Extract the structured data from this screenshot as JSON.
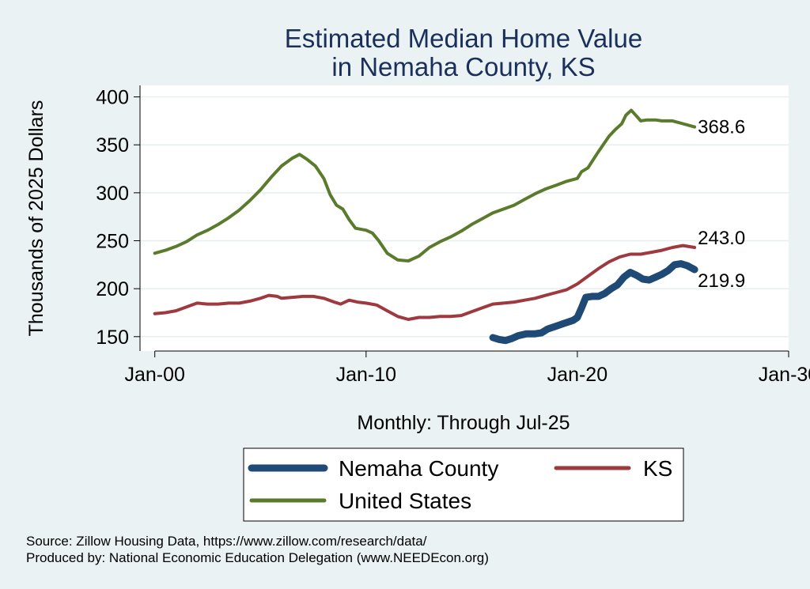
{
  "chart_data": {
    "type": "line",
    "title": [
      "Estimated Median Home Value",
      "in Nemaha County, KS"
    ],
    "ylabel": "Thousands of 2025 Dollars",
    "xlabel": "Monthly: Through Jul-25",
    "ylim": [
      135,
      412
    ],
    "xlim": [
      1999.3,
      2030.0
    ],
    "yticks": [
      150,
      200,
      250,
      300,
      350,
      400
    ],
    "xticks": [
      {
        "value": 2000,
        "label": "Jan-00"
      },
      {
        "value": 2010,
        "label": "Jan-10"
      },
      {
        "value": 2020,
        "label": "Jan-20"
      },
      {
        "value": 2030,
        "label": "Jan-30"
      }
    ],
    "series": [
      {
        "name": "United States",
        "color": "#5a7b2b",
        "width": 4,
        "end_label": "368.6",
        "points": [
          [
            2000.0,
            237
          ],
          [
            2000.5,
            240
          ],
          [
            2001.0,
            244
          ],
          [
            2001.5,
            249
          ],
          [
            2002.0,
            256
          ],
          [
            2002.5,
            261
          ],
          [
            2003.0,
            267
          ],
          [
            2003.5,
            274
          ],
          [
            2004.0,
            282
          ],
          [
            2004.5,
            292
          ],
          [
            2005.0,
            303
          ],
          [
            2005.5,
            316
          ],
          [
            2006.0,
            328
          ],
          [
            2006.5,
            336
          ],
          [
            2006.85,
            340
          ],
          [
            2007.2,
            335
          ],
          [
            2007.6,
            328
          ],
          [
            2008.0,
            315
          ],
          [
            2008.3,
            298
          ],
          [
            2008.6,
            287
          ],
          [
            2008.9,
            283
          ],
          [
            2009.2,
            272
          ],
          [
            2009.5,
            263
          ],
          [
            2010.0,
            261
          ],
          [
            2010.3,
            258
          ],
          [
            2010.6,
            250
          ],
          [
            2011.0,
            237
          ],
          [
            2011.5,
            230
          ],
          [
            2012.0,
            229
          ],
          [
            2012.5,
            234
          ],
          [
            2013.0,
            243
          ],
          [
            2013.5,
            249
          ],
          [
            2014.0,
            254
          ],
          [
            2014.5,
            260
          ],
          [
            2015.0,
            267
          ],
          [
            2015.5,
            273
          ],
          [
            2016.0,
            279
          ],
          [
            2016.5,
            283
          ],
          [
            2017.0,
            287
          ],
          [
            2017.5,
            293
          ],
          [
            2018.0,
            299
          ],
          [
            2018.5,
            304
          ],
          [
            2019.0,
            308
          ],
          [
            2019.5,
            312
          ],
          [
            2020.0,
            315
          ],
          [
            2020.2,
            322
          ],
          [
            2020.5,
            326
          ],
          [
            2021.0,
            343
          ],
          [
            2021.5,
            359
          ],
          [
            2021.8,
            366
          ],
          [
            2022.1,
            372
          ],
          [
            2022.3,
            381
          ],
          [
            2022.55,
            386
          ],
          [
            2022.8,
            380
          ],
          [
            2023.0,
            375
          ],
          [
            2023.3,
            376
          ],
          [
            2023.7,
            376
          ],
          [
            2024.0,
            375
          ],
          [
            2024.5,
            375
          ],
          [
            2025.0,
            372
          ],
          [
            2025.55,
            368.6
          ]
        ]
      },
      {
        "name": "KS",
        "color": "#9e3a3f",
        "width": 4,
        "end_label": "243.0",
        "points": [
          [
            2000.0,
            174
          ],
          [
            2000.5,
            175
          ],
          [
            2001.0,
            177
          ],
          [
            2001.5,
            181
          ],
          [
            2002.0,
            185
          ],
          [
            2002.5,
            184
          ],
          [
            2003.0,
            184
          ],
          [
            2003.5,
            185
          ],
          [
            2004.0,
            185
          ],
          [
            2004.5,
            187
          ],
          [
            2005.0,
            190
          ],
          [
            2005.4,
            193
          ],
          [
            2005.8,
            192
          ],
          [
            2006.0,
            190
          ],
          [
            2006.5,
            191
          ],
          [
            2007.0,
            192
          ],
          [
            2007.5,
            192
          ],
          [
            2008.0,
            190
          ],
          [
            2008.5,
            186
          ],
          [
            2008.8,
            184
          ],
          [
            2009.2,
            188
          ],
          [
            2009.6,
            186
          ],
          [
            2010.0,
            185
          ],
          [
            2010.5,
            183
          ],
          [
            2011.0,
            177
          ],
          [
            2011.5,
            171
          ],
          [
            2012.0,
            168
          ],
          [
            2012.5,
            170
          ],
          [
            2013.0,
            170
          ],
          [
            2013.5,
            171
          ],
          [
            2014.0,
            171
          ],
          [
            2014.5,
            172
          ],
          [
            2015.0,
            176
          ],
          [
            2015.5,
            180
          ],
          [
            2016.0,
            184
          ],
          [
            2016.5,
            185
          ],
          [
            2017.0,
            186
          ],
          [
            2017.5,
            188
          ],
          [
            2018.0,
            190
          ],
          [
            2018.5,
            193
          ],
          [
            2019.0,
            196
          ],
          [
            2019.5,
            199
          ],
          [
            2020.0,
            205
          ],
          [
            2020.5,
            213
          ],
          [
            2021.0,
            221
          ],
          [
            2021.5,
            228
          ],
          [
            2022.0,
            233
          ],
          [
            2022.5,
            236
          ],
          [
            2023.0,
            236
          ],
          [
            2023.5,
            238
          ],
          [
            2024.0,
            240
          ],
          [
            2024.5,
            243
          ],
          [
            2025.0,
            245
          ],
          [
            2025.55,
            243.0
          ]
        ]
      },
      {
        "name": "Nemaha County",
        "color": "#1f4a76",
        "width": 9,
        "end_label": "219.9",
        "points": [
          [
            2016.0,
            149
          ],
          [
            2016.3,
            147
          ],
          [
            2016.6,
            146
          ],
          [
            2016.9,
            148
          ],
          [
            2017.2,
            151
          ],
          [
            2017.6,
            153
          ],
          [
            2018.0,
            153
          ],
          [
            2018.3,
            154
          ],
          [
            2018.6,
            158
          ],
          [
            2019.0,
            161
          ],
          [
            2019.4,
            164
          ],
          [
            2019.8,
            167
          ],
          [
            2020.0,
            170
          ],
          [
            2020.2,
            180
          ],
          [
            2020.4,
            191
          ],
          [
            2020.7,
            192
          ],
          [
            2021.0,
            192
          ],
          [
            2021.3,
            195
          ],
          [
            2021.6,
            200
          ],
          [
            2021.9,
            204
          ],
          [
            2022.2,
            212
          ],
          [
            2022.5,
            217
          ],
          [
            2022.8,
            214
          ],
          [
            2023.1,
            210
          ],
          [
            2023.4,
            209
          ],
          [
            2023.7,
            212
          ],
          [
            2024.0,
            215
          ],
          [
            2024.3,
            219
          ],
          [
            2024.6,
            225
          ],
          [
            2024.9,
            226
          ],
          [
            2025.2,
            224
          ],
          [
            2025.55,
            219.9
          ]
        ]
      }
    ],
    "legend": [
      {
        "name": "Nemaha County",
        "color": "#1f4a76",
        "width": 9
      },
      {
        "name": "KS",
        "color": "#9e3a3f",
        "width": 5
      },
      {
        "name": "United States",
        "color": "#5a7b2b",
        "width": 5
      }
    ]
  },
  "footer": {
    "source": "Source: Zillow Housing Data, https://www.zillow.com/research/data/",
    "produced_by": "Produced by: National Economic Education Delegation (www.NEEDEcon.org)"
  }
}
